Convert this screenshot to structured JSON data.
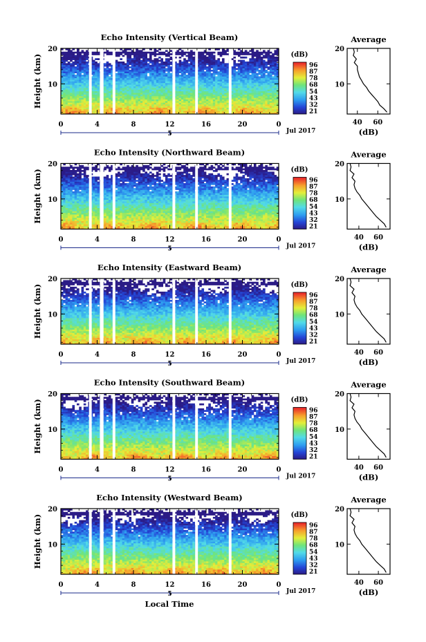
{
  "figure": {
    "x_axis_label": "Local Time",
    "month_label": "Jul 2017",
    "date_marker": "5",
    "colorbar_unit": "(dB)",
    "colorbar_ticks": [
      "96",
      "87",
      "78",
      "68",
      "54",
      "43",
      "32",
      "21"
    ],
    "avg_title": "Average",
    "avg_xlabel": "(dB)",
    "height_label": "Height (km)"
  },
  "chart_data": [
    {
      "type": "heatmap",
      "title": "Echo Intensity (Vertical Beam)",
      "xlabel": "",
      "ylabel": "Height (km)",
      "x_ticks": [
        "0",
        "4",
        "8",
        "12",
        "16",
        "20",
        "0"
      ],
      "y_ticks": [
        "20",
        "10"
      ],
      "xlim_hours": [
        0,
        24
      ],
      "ylim_km": [
        1.5,
        20
      ],
      "colorbar": {
        "label": "(dB)",
        "range_dB": [
          21,
          96
        ],
        "ticks": [
          96,
          87,
          78,
          68,
          54,
          43,
          32,
          21
        ]
      },
      "data_gaps_hours": [
        [
          3.1,
          3.4
        ],
        [
          4.3,
          4.7
        ],
        [
          5.7,
          6.0
        ],
        [
          12.3,
          12.6
        ],
        [
          14.8,
          15.1
        ],
        [
          18.5,
          18.8
        ]
      ],
      "average_profile": {
        "title": "Average",
        "xlabel": "(dB)",
        "x_ticks": [
          "40",
          "60"
        ],
        "xlim": [
          30,
          72
        ],
        "ylim_km": [
          1.5,
          20
        ],
        "height_km": [
          2,
          3,
          4,
          5,
          6,
          7,
          8,
          9,
          10,
          11,
          12,
          13,
          14,
          15,
          16,
          17,
          18,
          19,
          20
        ],
        "intensity_dB": [
          69,
          66,
          62,
          60,
          57,
          54,
          51,
          49,
          46,
          44,
          42,
          41,
          40,
          40,
          37,
          39,
          36,
          37,
          36
        ]
      }
    },
    {
      "type": "heatmap",
      "title": "Echo Intensity (Northward Beam)",
      "xlabel": "",
      "ylabel": "Height (km)",
      "x_ticks": [
        "0",
        "4",
        "8",
        "12",
        "16",
        "20",
        "0"
      ],
      "y_ticks": [
        "20",
        "10"
      ],
      "xlim_hours": [
        0,
        24
      ],
      "ylim_km": [
        1.5,
        20
      ],
      "colorbar": {
        "label": "(dB)",
        "range_dB": [
          21,
          96
        ],
        "ticks": [
          96,
          87,
          78,
          68,
          54,
          43,
          32,
          21
        ]
      },
      "data_gaps_hours": [
        [
          3.1,
          3.4
        ],
        [
          4.3,
          4.7
        ],
        [
          5.7,
          6.0
        ],
        [
          12.3,
          12.6
        ],
        [
          14.8,
          15.1
        ],
        [
          18.5,
          18.8
        ]
      ],
      "average_profile": {
        "title": "Average",
        "xlabel": "(dB)",
        "x_ticks": [
          "40",
          "60"
        ],
        "xlim": [
          28,
          72
        ],
        "ylim_km": [
          1.5,
          20
        ],
        "height_km": [
          2,
          3,
          4,
          5,
          6,
          7,
          8,
          9,
          10,
          11,
          12,
          13,
          14,
          15,
          16,
          17,
          18,
          19,
          20
        ],
        "intensity_dB": [
          68,
          66,
          62,
          58,
          55,
          52,
          49,
          46,
          43,
          41,
          38,
          36,
          35,
          36,
          33,
          35,
          31,
          32,
          31
        ]
      }
    },
    {
      "type": "heatmap",
      "title": "Echo Intensity (Eastward Beam)",
      "xlabel": "",
      "ylabel": "Height (km)",
      "x_ticks": [
        "0",
        "4",
        "8",
        "12",
        "16",
        "20",
        "0"
      ],
      "y_ticks": [
        "20",
        "10"
      ],
      "xlim_hours": [
        0,
        24
      ],
      "ylim_km": [
        1.5,
        20
      ],
      "colorbar": {
        "label": "(dB)",
        "range_dB": [
          21,
          96
        ],
        "ticks": [
          96,
          87,
          78,
          68,
          54,
          43,
          32,
          21
        ]
      },
      "data_gaps_hours": [
        [
          3.1,
          3.4
        ],
        [
          4.3,
          4.7
        ],
        [
          5.7,
          6.0
        ],
        [
          12.3,
          12.6
        ],
        [
          14.8,
          15.1
        ],
        [
          18.5,
          18.8
        ]
      ],
      "average_profile": {
        "title": "Average",
        "xlabel": "(dB)",
        "x_ticks": [
          "40",
          "60"
        ],
        "xlim": [
          28,
          72
        ],
        "ylim_km": [
          1.5,
          20
        ],
        "height_km": [
          2,
          3,
          4,
          5,
          6,
          7,
          8,
          9,
          10,
          11,
          12,
          13,
          14,
          15,
          16,
          17,
          18,
          19,
          20
        ],
        "intensity_dB": [
          68,
          66,
          62,
          58,
          55,
          52,
          49,
          46,
          43,
          41,
          38,
          36,
          35,
          36,
          33,
          35,
          31,
          32,
          31
        ]
      }
    },
    {
      "type": "heatmap",
      "title": "Echo Intensity (Southward Beam)",
      "xlabel": "",
      "ylabel": "Height (km)",
      "x_ticks": [
        "0",
        "4",
        "8",
        "12",
        "16",
        "20",
        "0"
      ],
      "y_ticks": [
        "20",
        "10"
      ],
      "xlim_hours": [
        0,
        24
      ],
      "ylim_km": [
        1.5,
        20
      ],
      "colorbar": {
        "label": "(dB)",
        "range_dB": [
          21,
          96
        ],
        "ticks": [
          96,
          87,
          78,
          68,
          54,
          43,
          32,
          21
        ]
      },
      "data_gaps_hours": [
        [
          3.1,
          3.4
        ],
        [
          4.3,
          4.7
        ],
        [
          5.7,
          6.0
        ],
        [
          12.3,
          12.6
        ],
        [
          14.8,
          15.1
        ],
        [
          18.5,
          18.8
        ]
      ],
      "average_profile": {
        "title": "Average",
        "xlabel": "(dB)",
        "x_ticks": [
          "40",
          "60"
        ],
        "xlim": [
          28,
          72
        ],
        "ylim_km": [
          1.5,
          20
        ],
        "height_km": [
          2,
          3,
          4,
          5,
          6,
          7,
          8,
          9,
          10,
          11,
          12,
          13,
          14,
          15,
          16,
          17,
          18,
          19,
          20
        ],
        "intensity_dB": [
          68,
          66,
          62,
          58,
          55,
          52,
          49,
          46,
          43,
          41,
          38,
          36,
          35,
          36,
          33,
          35,
          31,
          32,
          31
        ]
      }
    },
    {
      "type": "heatmap",
      "title": "Echo Intensity (Westward Beam)",
      "xlabel": "",
      "ylabel": "Height (km)",
      "x_ticks": [
        "0",
        "4",
        "8",
        "12",
        "16",
        "20",
        "0"
      ],
      "y_ticks": [
        "20",
        "10"
      ],
      "xlim_hours": [
        0,
        24
      ],
      "ylim_km": [
        1.5,
        20
      ],
      "colorbar": {
        "label": "(dB)",
        "range_dB": [
          21,
          96
        ],
        "ticks": [
          96,
          87,
          78,
          68,
          54,
          43,
          32,
          21
        ]
      },
      "data_gaps_hours": [
        [
          3.1,
          3.4
        ],
        [
          4.3,
          4.7
        ],
        [
          5.7,
          6.0
        ],
        [
          12.3,
          12.6
        ],
        [
          14.8,
          15.1
        ],
        [
          18.5,
          18.8
        ]
      ],
      "average_profile": {
        "title": "Average",
        "xlabel": "(dB)",
        "x_ticks": [
          "40",
          "60"
        ],
        "xlim": [
          28,
          72
        ],
        "ylim_km": [
          1.5,
          20
        ],
        "height_km": [
          2,
          3,
          4,
          5,
          6,
          7,
          8,
          9,
          10,
          11,
          12,
          13,
          14,
          15,
          16,
          17,
          18,
          19,
          20
        ],
        "intensity_dB": [
          68,
          66,
          62,
          58,
          55,
          52,
          49,
          46,
          43,
          41,
          38,
          36,
          35,
          36,
          33,
          35,
          31,
          32,
          31
        ]
      }
    }
  ]
}
